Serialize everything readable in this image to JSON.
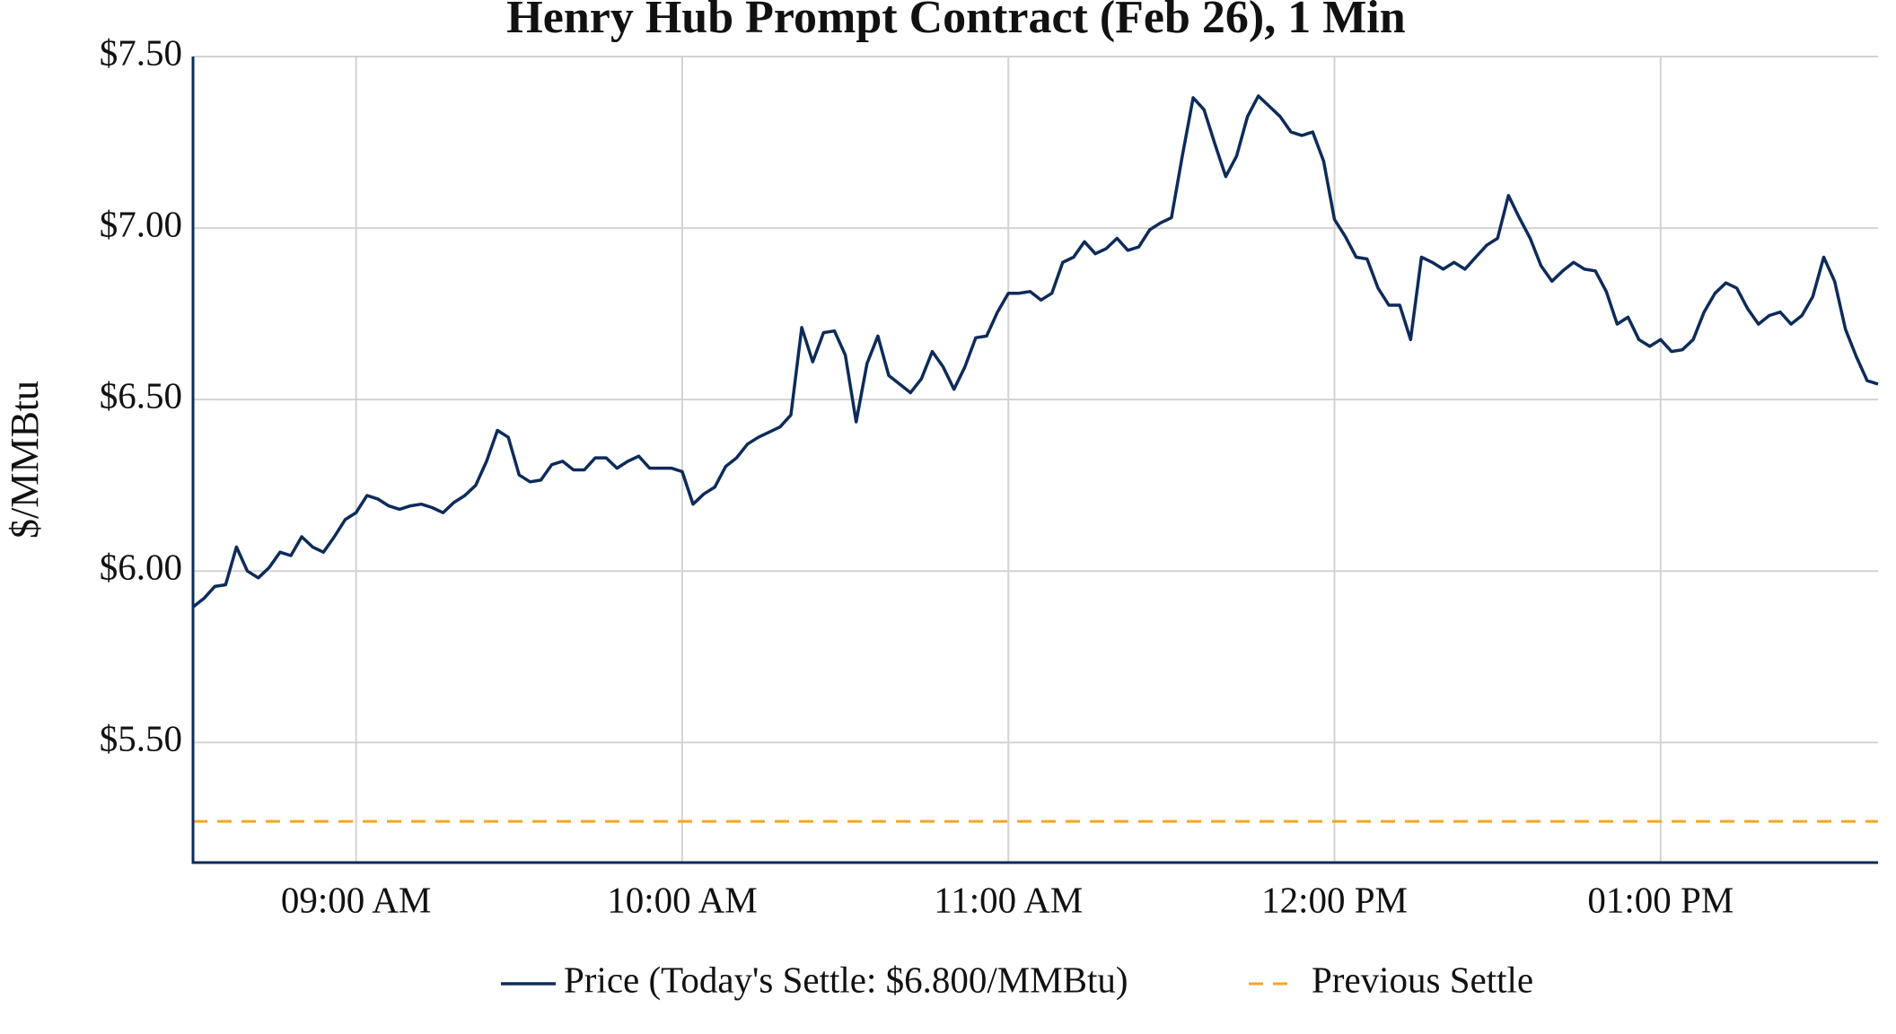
{
  "chart_data": {
    "type": "line",
    "title": "Henry Hub Prompt Contract (Feb 26), 1 Min",
    "y_label": "$/MMBtu",
    "x": [
      "08:30 AM",
      "08:32 AM",
      "08:34 AM",
      "08:36 AM",
      "08:38 AM",
      "08:40 AM",
      "08:42 AM",
      "08:44 AM",
      "08:46 AM",
      "08:48 AM",
      "08:50 AM",
      "08:52 AM",
      "08:54 AM",
      "08:56 AM",
      "08:58 AM",
      "09:00 AM",
      "09:02 AM",
      "09:04 AM",
      "09:06 AM",
      "09:08 AM",
      "09:10 AM",
      "09:12 AM",
      "09:14 AM",
      "09:16 AM",
      "09:18 AM",
      "09:20 AM",
      "09:22 AM",
      "09:24 AM",
      "09:26 AM",
      "09:28 AM",
      "09:30 AM",
      "09:32 AM",
      "09:34 AM",
      "09:36 AM",
      "09:38 AM",
      "09:40 AM",
      "09:42 AM",
      "09:44 AM",
      "09:46 AM",
      "09:48 AM",
      "09:50 AM",
      "09:52 AM",
      "09:54 AM",
      "09:56 AM",
      "09:58 AM",
      "10:00 AM",
      "10:02 AM",
      "10:04 AM",
      "10:06 AM",
      "10:08 AM",
      "10:10 AM",
      "10:12 AM",
      "10:14 AM",
      "10:16 AM",
      "10:18 AM",
      "10:20 AM",
      "10:22 AM",
      "10:24 AM",
      "10:26 AM",
      "10:28 AM",
      "10:30 AM",
      "10:32 AM",
      "10:34 AM",
      "10:36 AM",
      "10:38 AM",
      "10:40 AM",
      "10:42 AM",
      "10:44 AM",
      "10:46 AM",
      "10:48 AM",
      "10:50 AM",
      "10:52 AM",
      "10:54 AM",
      "10:56 AM",
      "10:58 AM",
      "11:00 AM",
      "11:02 AM",
      "11:04 AM",
      "11:06 AM",
      "11:08 AM",
      "11:10 AM",
      "11:12 AM",
      "11:14 AM",
      "11:16 AM",
      "11:18 AM",
      "11:20 AM",
      "11:22 AM",
      "11:24 AM",
      "11:26 AM",
      "11:28 AM",
      "11:30 AM",
      "11:32 AM",
      "11:34 AM",
      "11:36 AM",
      "11:38 AM",
      "11:40 AM",
      "11:42 AM",
      "11:44 AM",
      "11:46 AM",
      "11:48 AM",
      "11:50 AM",
      "11:52 AM",
      "11:54 AM",
      "11:56 AM",
      "11:58 AM",
      "12:00 PM",
      "12:02 PM",
      "12:04 PM",
      "12:06 PM",
      "12:08 PM",
      "12:10 PM",
      "12:12 PM",
      "12:14 PM",
      "12:16 PM",
      "12:18 PM",
      "12:20 PM",
      "12:22 PM",
      "12:24 PM",
      "12:26 PM",
      "12:28 PM",
      "12:30 PM",
      "12:32 PM",
      "12:34 PM",
      "12:36 PM",
      "12:38 PM",
      "12:40 PM",
      "12:42 PM",
      "12:44 PM",
      "12:46 PM",
      "12:48 PM",
      "12:50 PM",
      "12:52 PM",
      "12:54 PM",
      "12:56 PM",
      "12:58 PM",
      "01:00 PM",
      "01:02 PM",
      "01:04 PM",
      "01:06 PM",
      "01:08 PM",
      "01:10 PM",
      "01:12 PM",
      "01:14 PM",
      "01:16 PM",
      "01:18 PM",
      "01:20 PM",
      "01:22 PM",
      "01:24 PM",
      "01:26 PM",
      "01:28 PM",
      "01:30 PM",
      "01:32 PM",
      "01:34 PM",
      "01:36 PM",
      "01:38 PM",
      "01:40 PM"
    ],
    "series": [
      {
        "name": "Price (Today's Settle: $6.800/MMBtu)",
        "color": "#0d2b5a",
        "values": [
          5.895,
          5.92,
          5.955,
          5.96,
          6.07,
          6.0,
          5.98,
          6.01,
          6.055,
          6.045,
          6.1,
          6.07,
          6.055,
          6.1,
          6.15,
          6.17,
          6.22,
          6.21,
          6.19,
          6.18,
          6.19,
          6.195,
          6.185,
          6.17,
          6.2,
          6.22,
          6.25,
          6.32,
          6.41,
          6.39,
          6.28,
          6.26,
          6.265,
          6.31,
          6.32,
          6.295,
          6.295,
          6.33,
          6.33,
          6.3,
          6.32,
          6.335,
          6.3,
          6.3,
          6.3,
          6.29,
          6.195,
          6.225,
          6.245,
          6.305,
          6.33,
          6.37,
          6.39,
          6.405,
          6.42,
          6.455,
          6.71,
          6.61,
          6.695,
          6.7,
          6.63,
          6.435,
          6.605,
          6.685,
          6.57,
          6.545,
          6.52,
          6.56,
          6.64,
          6.595,
          6.53,
          6.595,
          6.68,
          6.685,
          6.755,
          6.81,
          6.81,
          6.815,
          6.79,
          6.81,
          6.9,
          6.915,
          6.96,
          6.925,
          6.94,
          6.97,
          6.935,
          6.945,
          6.995,
          7.015,
          7.03,
          7.21,
          7.38,
          7.345,
          7.245,
          7.15,
          7.21,
          7.325,
          7.385,
          7.355,
          7.325,
          7.28,
          7.27,
          7.28,
          7.195,
          7.025,
          6.975,
          6.915,
          6.91,
          6.825,
          6.775,
          6.775,
          6.675,
          6.915,
          6.9,
          6.88,
          6.9,
          6.88,
          6.915,
          6.95,
          6.97,
          7.095,
          7.03,
          6.97,
          6.89,
          6.845,
          6.875,
          6.9,
          6.88,
          6.875,
          6.815,
          6.72,
          6.74,
          6.675,
          6.655,
          6.675,
          6.64,
          6.645,
          6.675,
          6.755,
          6.81,
          6.84,
          6.825,
          6.765,
          6.72,
          6.745,
          6.755,
          6.72,
          6.745,
          6.8,
          6.915,
          6.845,
          6.705,
          6.625,
          6.555,
          6.545
        ]
      }
    ],
    "reference_lines": [
      {
        "name": "Previous Settle",
        "color": "#f5a623",
        "value": 5.27,
        "style": "dashed"
      }
    ],
    "xlim": [
      "08:30 AM",
      "01:40 PM"
    ],
    "xticks": [
      "09:00 AM",
      "10:00 AM",
      "11:00 AM",
      "12:00 PM",
      "01:00 PM"
    ],
    "ylim": [
      5.15,
      7.5
    ],
    "yticks": [
      {
        "value": 5.5,
        "label": "$5.50"
      },
      {
        "value": 6.0,
        "label": "$6.00"
      },
      {
        "value": 6.5,
        "label": "$6.50"
      },
      {
        "value": 7.0,
        "label": "$7.00"
      },
      {
        "value": 7.5,
        "label": "$7.50"
      }
    ],
    "grid": true,
    "legend": "bottom"
  }
}
